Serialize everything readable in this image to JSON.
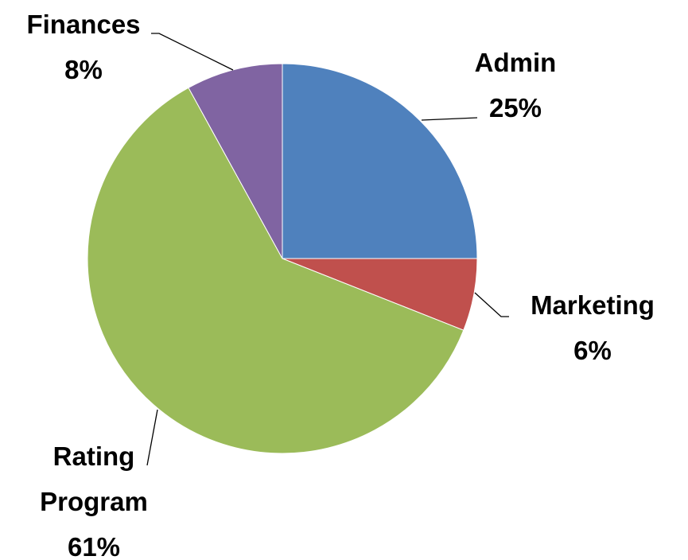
{
  "chart_data": {
    "type": "pie",
    "categories": [
      "Admin",
      "Marketing",
      "Rating Program",
      "Finances"
    ],
    "values": [
      25,
      6,
      61,
      8
    ],
    "value_labels": [
      "25%",
      "6%",
      "61%",
      "8%"
    ],
    "colors": [
      "#4f81bd",
      "#c0504d",
      "#9bbb59",
      "#8064a2"
    ]
  }
}
